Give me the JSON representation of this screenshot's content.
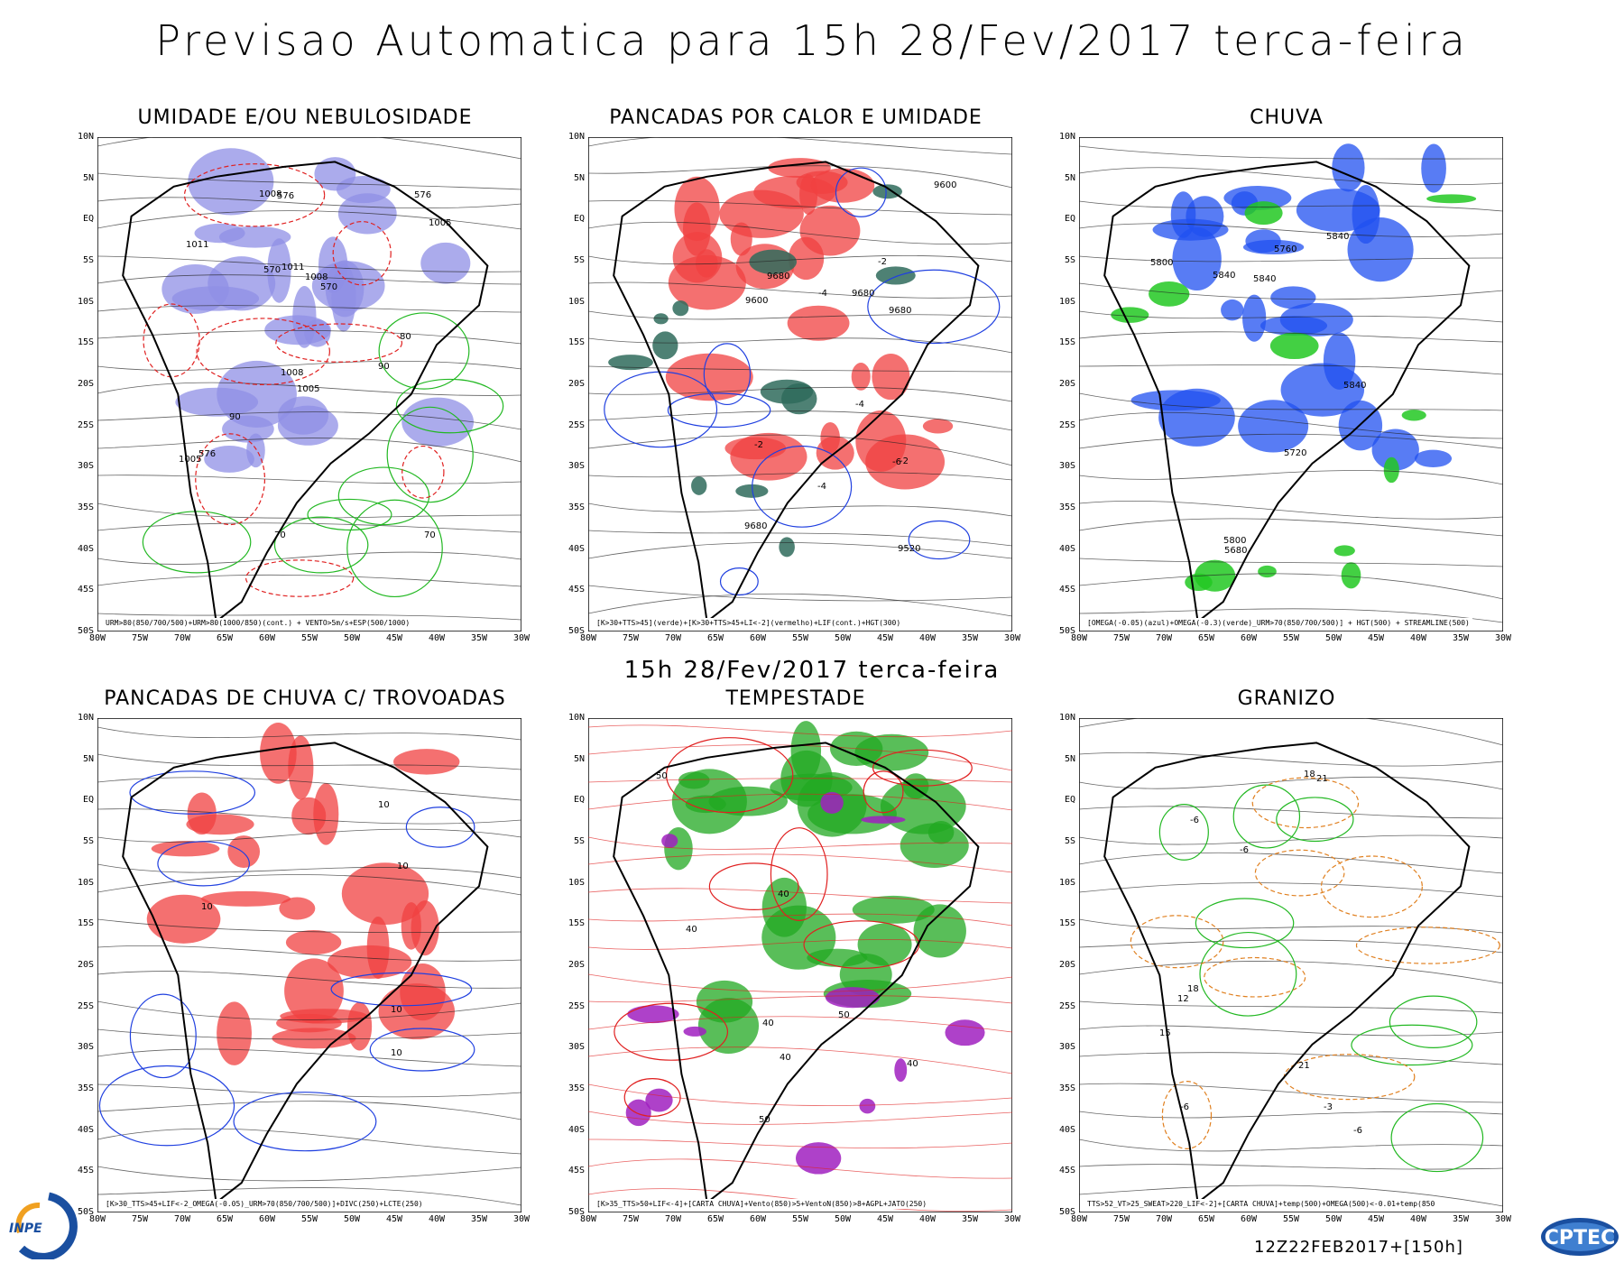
{
  "header": {
    "title": "Previsao Automatica  para 15h 28/Fev/2017 terca-feira"
  },
  "middle_subtitle": "15h 28/Fev/2017 terca-feira",
  "footer": {
    "run_stamp": "12Z22FEB2017+[150h]",
    "logo_left": "INPE",
    "logo_right": "CPTEC"
  },
  "axes": {
    "lat_labels": [
      "10N",
      "5N",
      "EQ",
      "5S",
      "10S",
      "15S",
      "20S",
      "25S",
      "30S",
      "35S",
      "40S",
      "45S",
      "50S"
    ],
    "lon_labels": [
      "80W",
      "75W",
      "70W",
      "65W",
      "60W",
      "55W",
      "50W",
      "45W",
      "40W",
      "35W",
      "30W"
    ]
  },
  "panels": [
    {
      "title": "UMIDADE E/OU NEBULOSIDADE",
      "caption": "URM>80(850/700/500)+URM>80(1000/850)(cont.) + VENTO>5m/s+ESP(500/1000)",
      "contour_labels": [
        "1011",
        "1008",
        "1008",
        "1008",
        "1005",
        "1005",
        "1005",
        "1011",
        "576",
        "576",
        "576",
        "570",
        "570",
        "90",
        "90",
        "70",
        "70",
        "80"
      ],
      "colors": {
        "fill": "#8f8fe6",
        "contour_a": "#22b822",
        "contour_b": "#e02020"
      }
    },
    {
      "title": "PANCADAS POR CALOR E UMIDADE",
      "caption": "[K>30+TTS>45](verde)+[K>30+TTS>45+LI<-2](vermelho)+LIF(cont.)+HGT(300)",
      "contour_labels": [
        "9680",
        "9680",
        "9680",
        "9680",
        "9600",
        "9600",
        "9520",
        "-2",
        "-2",
        "-4",
        "-4",
        "-6",
        "-2",
        "-4"
      ],
      "colors": {
        "fill": "#f04040",
        "fill2": "#2f6b5c",
        "contour_a": "#2040e0"
      }
    },
    {
      "title": "CHUVA",
      "caption": "[OMEGA(-0.05)(azul)+OMEGA(-0.3)(verde)_URM>70(850/700/500)] + HGT(500) + STREAMLINE(500)",
      "contour_labels": [
        "5840",
        "5840",
        "5840",
        "5840",
        "5800",
        "5800",
        "5760",
        "5720",
        "5680"
      ],
      "colors": {
        "fill": "#2050f0",
        "fill2": "#22c822"
      }
    },
    {
      "title": "PANCADAS DE CHUVA C/ TROVOADAS",
      "caption": "[K>30_TTS>45+LIF<-2_OMEGA(-0.05)_URM>70(850/700/500)]+DIVC(250)+LCTE(250)",
      "contour_labels": [
        "10",
        "10",
        "10",
        "10",
        "10"
      ],
      "colors": {
        "fill": "#f04040",
        "contour_a": "#2040e0"
      }
    },
    {
      "title": "TEMPESTADE",
      "caption": "[K>35_TTS>50+LIF<-4]+[CARTA CHUVA]+Vento(850)>5+VentoN(850)>8+AGPL+JATO(250)",
      "contour_labels": [
        "50",
        "50",
        "40",
        "40",
        "40",
        "50",
        "40",
        "40"
      ],
      "colors": {
        "fill": "#22a822",
        "fill2": "#a020c0",
        "contour_a": "#e02020"
      }
    },
    {
      "title": "GRANIZO",
      "caption": "TTS>52_VT>25_SWEAT>220_LIF<-2]+[CARTA CHUVA]+temp(500)+OMEGA(500)<-0.01+temp(850",
      "contour_labels": [
        "-6",
        "-6",
        "-6",
        "-6",
        "18",
        "18",
        "21",
        "21",
        "15",
        "12",
        "-3"
      ],
      "colors": {
        "contour_a": "#22b822",
        "contour_b": "#e08020"
      }
    }
  ]
}
